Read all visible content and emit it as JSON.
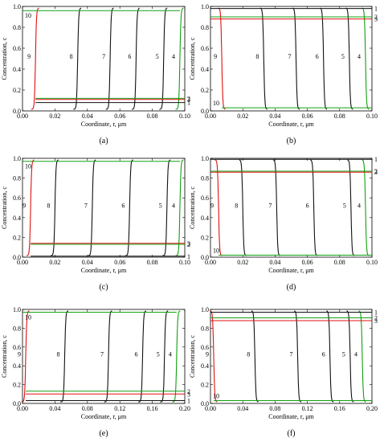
{
  "chart_data": [
    {
      "panel": "(a)",
      "type": "line",
      "xlabel": "Coordinate, r, μm",
      "ylabel": "Concentration, c",
      "xlim": [
        0,
        0.1
      ],
      "ylim": [
        0,
        1
      ],
      "xticks": [
        "0.00",
        "0.02",
        "0.04",
        "0.06",
        "0.08",
        "0.10"
      ],
      "yticks": [
        "0.0",
        "0.2",
        "0.4",
        "0.6",
        "0.8",
        "1.0"
      ],
      "curve_labels": [
        "10",
        "9",
        "8",
        "7",
        "6",
        "5",
        "4",
        "3",
        "2",
        "1"
      ],
      "fronts": [
        {
          "label": "9",
          "x": 0.008,
          "color": "#e01010"
        },
        {
          "label": "8",
          "x": 0.034,
          "color": "#111111"
        },
        {
          "label": "7",
          "x": 0.054,
          "color": "#111111"
        },
        {
          "label": "6",
          "x": 0.07,
          "color": "#111111"
        },
        {
          "label": "5",
          "x": 0.087,
          "color": "#111111"
        },
        {
          "label": "4",
          "x": 0.097,
          "color": "#10a010"
        }
      ],
      "levels": [
        {
          "label": "3",
          "y": 0.11,
          "color": "#e01010"
        },
        {
          "label": "2",
          "y": 0.12,
          "color": "#10a010"
        },
        {
          "label": "1",
          "y": 0.08,
          "color": "#111111"
        },
        {
          "label": "10",
          "y": 0.96,
          "color": "#10a010"
        }
      ]
    },
    {
      "panel": "(b)",
      "type": "line",
      "xlabel": "Coordinate, r, μm",
      "ylabel": "Concentration, c",
      "xlim": [
        0,
        0.1
      ],
      "ylim": [
        0,
        1
      ],
      "xticks": [
        "0.00",
        "0.02",
        "0.04",
        "0.06",
        "0.08",
        "0.10"
      ],
      "yticks": [
        "0.0",
        "0.2",
        "0.4",
        "0.6",
        "0.8",
        "1.0"
      ],
      "curve_labels": [
        "1",
        "2",
        "3",
        "9",
        "8",
        "7",
        "6",
        "5",
        "4",
        "10"
      ],
      "fronts": [
        {
          "label": "9",
          "x": 0.007,
          "color": "#e01010"
        },
        {
          "label": "8",
          "x": 0.033,
          "color": "#111111"
        },
        {
          "label": "7",
          "x": 0.053,
          "color": "#111111"
        },
        {
          "label": "6",
          "x": 0.07,
          "color": "#111111"
        },
        {
          "label": "5",
          "x": 0.086,
          "color": "#111111"
        },
        {
          "label": "4",
          "x": 0.096,
          "color": "#10a010"
        }
      ],
      "levels": [
        {
          "label": "1",
          "y": 0.98,
          "color": "#111111"
        },
        {
          "label": "2",
          "y": 0.9,
          "color": "#10a010"
        },
        {
          "label": "3",
          "y": 0.88,
          "color": "#e01010"
        },
        {
          "label": "10",
          "y": 0.03,
          "color": "#10a010"
        }
      ]
    },
    {
      "panel": "(c)",
      "type": "line",
      "xlabel": "Coordinate, r, μm",
      "ylabel": "Concentration, c",
      "xlim": [
        0,
        0.1
      ],
      "ylim": [
        0,
        1
      ],
      "xticks": [
        "0.00",
        "0.02",
        "0.04",
        "0.06",
        "0.08",
        "0.10"
      ],
      "yticks": [
        "0.0",
        "0.2",
        "0.4",
        "0.6",
        "0.8",
        "1.0"
      ],
      "curve_labels": [
        "10",
        "9",
        "8",
        "7",
        "6",
        "5",
        "4",
        "3",
        "2",
        "1"
      ],
      "fronts": [
        {
          "label": "9",
          "x": 0.005,
          "color": "#e01010"
        },
        {
          "label": "8",
          "x": 0.02,
          "color": "#111111"
        },
        {
          "label": "7",
          "x": 0.043,
          "color": "#111111"
        },
        {
          "label": "6",
          "x": 0.066,
          "color": "#111111"
        },
        {
          "label": "5",
          "x": 0.089,
          "color": "#111111"
        },
        {
          "label": "4",
          "x": 0.097,
          "color": "#10a010"
        }
      ],
      "levels": [
        {
          "label": "3",
          "y": 0.14,
          "color": "#e01010"
        },
        {
          "label": "2",
          "y": 0.13,
          "color": "#10a010"
        },
        {
          "label": "1",
          "y": 0.01,
          "color": "#111111"
        },
        {
          "label": "10",
          "y": 0.97,
          "color": "#10a010"
        }
      ]
    },
    {
      "panel": "(d)",
      "type": "line",
      "xlabel": "Coordinate, r, μm",
      "ylabel": "Concentration, c",
      "xlim": [
        0,
        0.1
      ],
      "ylim": [
        0,
        1
      ],
      "xticks": [
        "0.00",
        "0.02",
        "0.04",
        "0.06",
        "0.08",
        "0.10"
      ],
      "yticks": [
        "0.0",
        "0.2",
        "0.4",
        "0.6",
        "0.8",
        "1.0"
      ],
      "curve_labels": [
        "1",
        "2",
        "3",
        "9",
        "8",
        "7",
        "6",
        "5",
        "4",
        "10"
      ],
      "fronts": [
        {
          "label": "9",
          "x": 0.005,
          "color": "#e01010"
        },
        {
          "label": "8",
          "x": 0.02,
          "color": "#111111"
        },
        {
          "label": "7",
          "x": 0.041,
          "color": "#111111"
        },
        {
          "label": "6",
          "x": 0.064,
          "color": "#111111"
        },
        {
          "label": "5",
          "x": 0.087,
          "color": "#111111"
        },
        {
          "label": "4",
          "x": 0.096,
          "color": "#10a010"
        }
      ],
      "levels": [
        {
          "label": "1",
          "y": 0.99,
          "color": "#111111"
        },
        {
          "label": "2",
          "y": 0.87,
          "color": "#10a010"
        },
        {
          "label": "3",
          "y": 0.86,
          "color": "#e01010"
        },
        {
          "label": "10",
          "y": 0.02,
          "color": "#10a010"
        }
      ]
    },
    {
      "panel": "(e)",
      "type": "line",
      "xlabel": "Coordinate, r, μm",
      "ylabel": "Concentration, c",
      "xlim": [
        0,
        0.2
      ],
      "ylim": [
        0,
        1
      ],
      "xticks": [
        "0.00",
        "0.04",
        "0.08",
        "0.12",
        "0.16",
        "0.20"
      ],
      "yticks": [
        "0.0",
        "0.2",
        "0.4",
        "0.6",
        "0.8",
        "1.0"
      ],
      "curve_labels": [
        "10",
        "9",
        "8",
        "7",
        "6",
        "5",
        "4",
        "3",
        "2",
        "1"
      ],
      "fronts": [
        {
          "label": "9",
          "x": 0.004,
          "color": "#e01010"
        },
        {
          "label": "8",
          "x": 0.052,
          "color": "#111111"
        },
        {
          "label": "7",
          "x": 0.106,
          "color": "#111111"
        },
        {
          "label": "6",
          "x": 0.148,
          "color": "#111111"
        },
        {
          "label": "5",
          "x": 0.175,
          "color": "#111111"
        },
        {
          "label": "4",
          "x": 0.19,
          "color": "#10a010"
        }
      ],
      "levels": [
        {
          "label": "3",
          "y": 0.1,
          "color": "#e01010"
        },
        {
          "label": "2",
          "y": 0.13,
          "color": "#10a010"
        },
        {
          "label": "1",
          "y": 0.03,
          "color": "#111111"
        },
        {
          "label": "10",
          "y": 0.97,
          "color": "#10a010"
        }
      ]
    },
    {
      "panel": "(f)",
      "type": "line",
      "xlabel": "Coordinate, r, μm",
      "ylabel": "Concentration, c",
      "xlim": [
        0,
        0.2
      ],
      "ylim": [
        0,
        1
      ],
      "xticks": [
        "0.00",
        "0.04",
        "0.08",
        "0.12",
        "0.16",
        "0.20"
      ],
      "yticks": [
        "0.0",
        "0.2",
        "0.4",
        "0.6",
        "0.8",
        "1.0"
      ],
      "curve_labels": [
        "1",
        "2",
        "3",
        "9",
        "8",
        "7",
        "6",
        "5",
        "4",
        "10"
      ],
      "fronts": [
        {
          "label": "9",
          "x": 0.004,
          "color": "#e01010"
        },
        {
          "label": "8",
          "x": 0.055,
          "color": "#111111"
        },
        {
          "label": "7",
          "x": 0.108,
          "color": "#111111"
        },
        {
          "label": "6",
          "x": 0.148,
          "color": "#111111"
        },
        {
          "label": "5",
          "x": 0.173,
          "color": "#111111"
        },
        {
          "label": "4",
          "x": 0.188,
          "color": "#10a010"
        }
      ],
      "levels": [
        {
          "label": "1",
          "y": 0.97,
          "color": "#111111"
        },
        {
          "label": "2",
          "y": 0.91,
          "color": "#10a010"
        },
        {
          "label": "3",
          "y": 0.88,
          "color": "#e01010"
        },
        {
          "label": "10",
          "y": 0.03,
          "color": "#10a010"
        }
      ]
    }
  ]
}
